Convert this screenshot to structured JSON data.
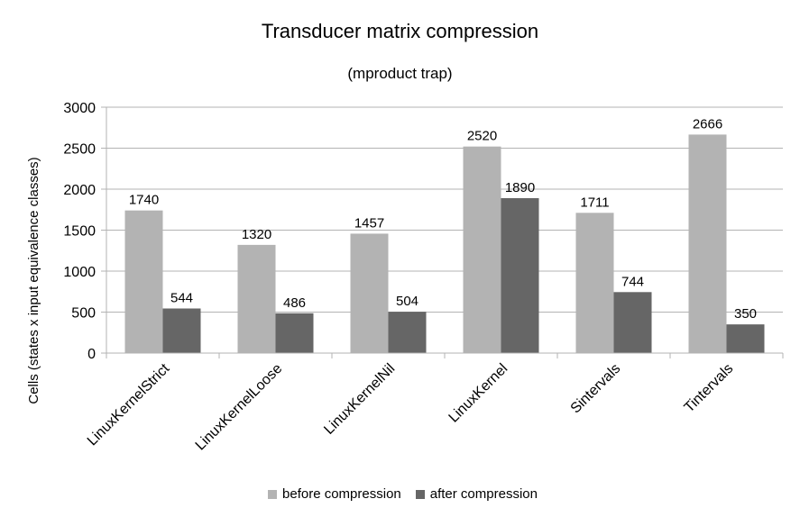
{
  "chart_data": {
    "type": "bar",
    "title": "Transducer matrix compression",
    "subtitle": "(mproduct trap)",
    "xlabel": "",
    "ylabel": "Cells (states x input equivalence classes)",
    "categories": [
      "LinuxKernelStrict",
      "LinuxKernelLoose",
      "LinuxKernelNil",
      "LinuxKernel",
      "Sintervals",
      "Tintervals"
    ],
    "series": [
      {
        "name": "before compression",
        "color": "#b3b3b3",
        "values": [
          1740,
          1320,
          1457,
          2520,
          1711,
          2666
        ]
      },
      {
        "name": "after compression",
        "color": "#666666",
        "values": [
          544,
          486,
          504,
          1890,
          744,
          350
        ]
      }
    ],
    "ylim": [
      0,
      3000
    ],
    "yticks": [
      0,
      500,
      1000,
      1500,
      2000,
      2500,
      3000
    ],
    "grid": true,
    "legend_position": "bottom",
    "data_labels": true
  }
}
